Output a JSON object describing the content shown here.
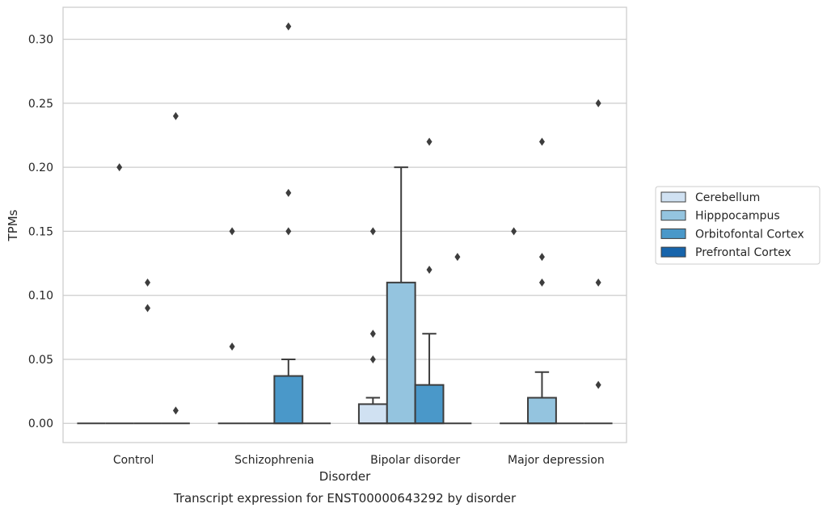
{
  "chart_data": {
    "type": "box",
    "title": "",
    "caption": "Transcript expression for ENST00000643292 by disorder",
    "xlabel": "Disorder",
    "ylabel": "TPMs",
    "ylim": [
      -0.015,
      0.325
    ],
    "yticks": [
      0.0,
      0.05,
      0.1,
      0.15,
      0.2,
      0.25,
      0.3
    ],
    "ytick_labels": [
      "0.00",
      "0.05",
      "0.10",
      "0.15",
      "0.20",
      "0.25",
      "0.30"
    ],
    "grid": true,
    "legend_position": "right",
    "categories": [
      "Control",
      "Schizophrenia",
      "Bipolar disorder",
      "Major depression"
    ],
    "series": [
      {
        "name": "Cerebellum",
        "color": "#d0e1f2",
        "boxes": [
          {
            "q1": 0,
            "median": 0,
            "q3": 0,
            "whisker_low": 0,
            "whisker_high": 0,
            "outliers": []
          },
          {
            "q1": 0,
            "median": 0,
            "q3": 0,
            "whisker_low": 0,
            "whisker_high": 0,
            "outliers": [
              0.15,
              0.06
            ]
          },
          {
            "q1": 0,
            "median": 0,
            "q3": 0.015,
            "whisker_low": 0,
            "whisker_high": 0.02,
            "outliers": [
              0.15,
              0.07,
              0.05
            ]
          },
          {
            "q1": 0,
            "median": 0,
            "q3": 0,
            "whisker_low": 0,
            "whisker_high": 0,
            "outliers": [
              0.15
            ]
          }
        ]
      },
      {
        "name": "Hipppocampus",
        "color": "#94c4df",
        "boxes": [
          {
            "q1": 0,
            "median": 0,
            "q3": 0,
            "whisker_low": 0,
            "whisker_high": 0,
            "outliers": [
              0.2
            ]
          },
          {
            "q1": 0,
            "median": 0,
            "q3": 0,
            "whisker_low": 0,
            "whisker_high": 0,
            "outliers": []
          },
          {
            "q1": 0,
            "median": 0,
            "q3": 0.11,
            "whisker_low": 0,
            "whisker_high": 0.2,
            "outliers": []
          },
          {
            "q1": 0,
            "median": 0,
            "q3": 0.02,
            "whisker_low": 0,
            "whisker_high": 0.04,
            "outliers": [
              0.22,
              0.13,
              0.11
            ]
          }
        ]
      },
      {
        "name": "Orbitofontal Cortex",
        "color": "#4a98c9",
        "boxes": [
          {
            "q1": 0,
            "median": 0,
            "q3": 0,
            "whisker_low": 0,
            "whisker_high": 0,
            "outliers": [
              0.11,
              0.09
            ]
          },
          {
            "q1": 0,
            "median": 0,
            "q3": 0.037,
            "whisker_low": 0,
            "whisker_high": 0.05,
            "outliers": [
              0.31,
              0.18,
              0.15
            ]
          },
          {
            "q1": 0,
            "median": 0,
            "q3": 0.03,
            "whisker_low": 0,
            "whisker_high": 0.07,
            "outliers": [
              0.22,
              0.12
            ]
          },
          {
            "q1": 0,
            "median": 0,
            "q3": 0,
            "whisker_low": 0,
            "whisker_high": 0,
            "outliers": []
          }
        ]
      },
      {
        "name": "Prefrontal Cortex",
        "color": "#1764ab",
        "boxes": [
          {
            "q1": 0,
            "median": 0,
            "q3": 0,
            "whisker_low": 0,
            "whisker_high": 0,
            "outliers": [
              0.24,
              0.01
            ]
          },
          {
            "q1": 0,
            "median": 0,
            "q3": 0,
            "whisker_low": 0,
            "whisker_high": 0,
            "outliers": []
          },
          {
            "q1": 0,
            "median": 0,
            "q3": 0,
            "whisker_low": 0,
            "whisker_high": 0,
            "outliers": [
              0.13
            ]
          },
          {
            "q1": 0,
            "median": 0,
            "q3": 0,
            "whisker_low": 0,
            "whisker_high": 0,
            "outliers": [
              0.25,
              0.11,
              0.03
            ]
          }
        ]
      }
    ]
  }
}
